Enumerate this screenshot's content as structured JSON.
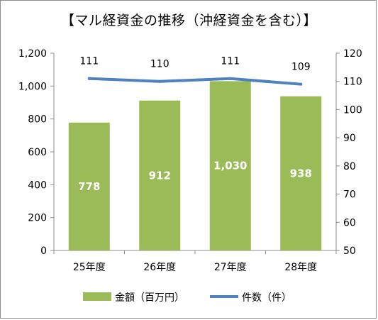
{
  "title": "【マル経資金の推移（沖経資金を含む）】",
  "chart_data": {
    "type": "bar",
    "categories": [
      "25年度",
      "26年度",
      "27年度",
      "28年度"
    ],
    "series": [
      {
        "name": "金額（百万円）",
        "type": "bar",
        "axis": "left",
        "values": [
          778,
          912,
          1030,
          938
        ],
        "labels": [
          "778",
          "912",
          "1,030",
          "938"
        ],
        "color": "#9bbb59"
      },
      {
        "name": "件数（件）",
        "type": "line",
        "axis": "right",
        "values": [
          111,
          110,
          111,
          109
        ],
        "labels": [
          "111",
          "110",
          "111",
          "109"
        ],
        "color": "#4f81bd"
      }
    ],
    "y_left": {
      "min": 0,
      "max": 1200,
      "ticks": [
        0,
        200,
        400,
        600,
        800,
        1000,
        1200
      ],
      "tick_labels": [
        "0",
        "200",
        "400",
        "600",
        "800",
        "1,000",
        "1,200"
      ]
    },
    "y_right": {
      "min": 50,
      "max": 120,
      "ticks": [
        50,
        60,
        70,
        80,
        90,
        100,
        110,
        120
      ],
      "tick_labels": [
        "50",
        "60",
        "70",
        "80",
        "90",
        "100",
        "110",
        "120"
      ]
    },
    "grid": false,
    "legend_position": "bottom"
  }
}
